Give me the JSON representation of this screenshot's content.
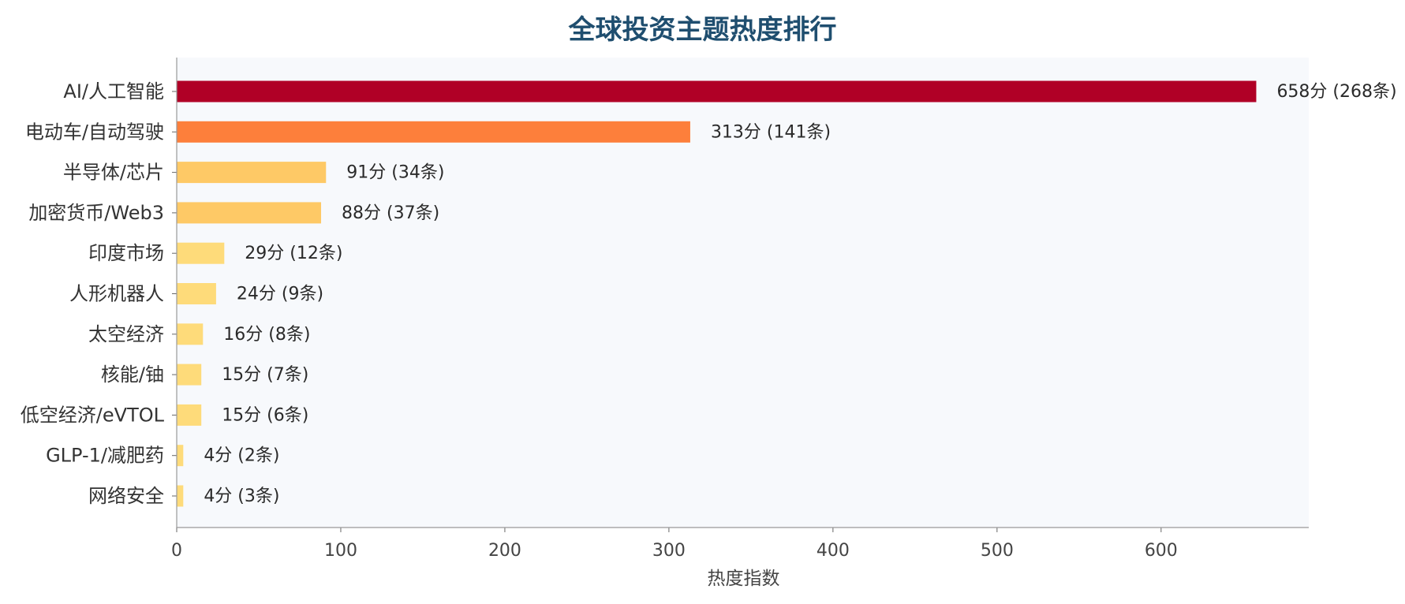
{
  "chart_data": {
    "type": "bar",
    "orientation": "horizontal",
    "title": "全球投资主题热度排行",
    "xlabel": "热度指数",
    "ylabel": "",
    "xlim": [
      0,
      690
    ],
    "xticks": [
      0,
      100,
      200,
      300,
      400,
      500,
      600
    ],
    "grid": false,
    "categories": [
      "AI/人工智能",
      "电动车/自动驾驶",
      "半导体/芯片",
      "加密货币/Web3",
      "印度市场",
      "人形机器人",
      "太空经济",
      "核能/铀",
      "低空经济/eVTOL",
      "GLP-1/减肥药",
      "网络安全"
    ],
    "values": [
      658,
      313,
      91,
      88,
      29,
      24,
      16,
      15,
      15,
      4,
      4
    ],
    "value_labels": [
      "658分 (268条)",
      "313分 (141条)",
      "91分 (34条)",
      "88分 (37条)",
      "29分 (12条)",
      "24分 (9条)",
      "16分 (8条)",
      "15分 (7条)",
      "15分 (6条)",
      "4分 (2条)",
      "4分 (3条)"
    ],
    "bar_colors": [
      "#b00026",
      "#fd7f3b",
      "#fec966",
      "#fec966",
      "#fedb7a",
      "#fedb7a",
      "#fedb7a",
      "#fedb7a",
      "#fedb7a",
      "#fedb7a",
      "#fedb7a"
    ],
    "plot_background": "#f7f9fc",
    "title_color": "#1f4e6f"
  }
}
